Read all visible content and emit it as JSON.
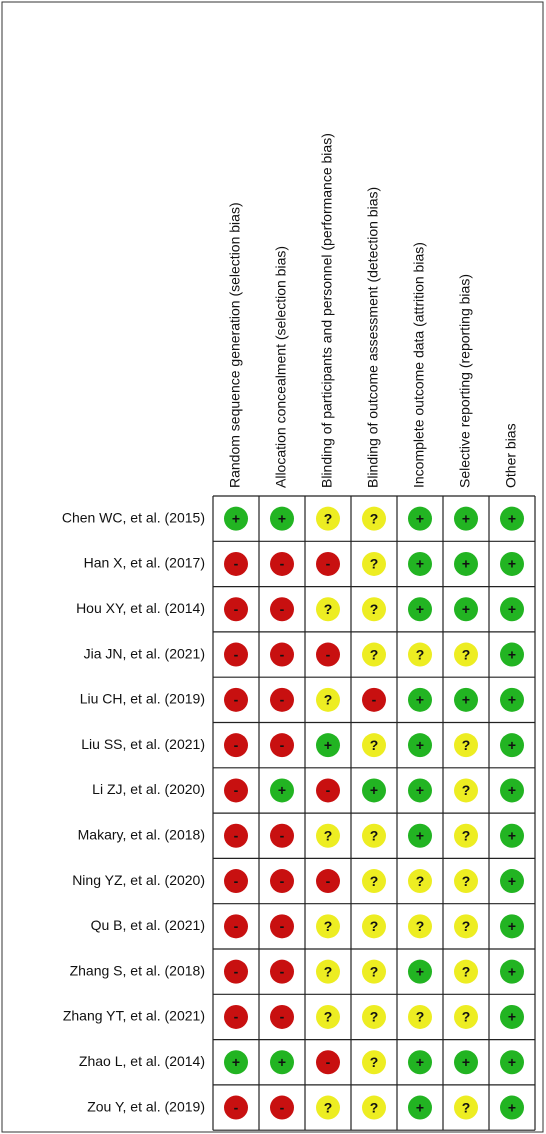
{
  "columns": [
    "Random sequence generation (selection bias)",
    "Allocation concealment (selection bias)",
    "Blinding of participants and personnel (performance bias)",
    "Blinding of outcome assessment (detection bias)",
    "Incomplete outcome data (attrition bias)",
    "Selective reporting (reporting bias)",
    "Other bias"
  ],
  "rows": [
    {
      "study": "Chen WC, et al. (2015)",
      "cells": [
        "+",
        "+",
        "?",
        "?",
        "+",
        "+",
        "+"
      ]
    },
    {
      "study": "Han X, et al. (2017)",
      "cells": [
        "-",
        "-",
        "-",
        "?",
        "+",
        "+",
        "+"
      ]
    },
    {
      "study": "Hou XY, et al. (2014)",
      "cells": [
        "-",
        "-",
        "?",
        "?",
        "+",
        "+",
        "+"
      ]
    },
    {
      "study": "Jia JN, et al. (2021)",
      "cells": [
        "-",
        "-",
        "-",
        "?",
        "?",
        "?",
        "+"
      ]
    },
    {
      "study": "Liu CH, et al. (2019)",
      "cells": [
        "-",
        "-",
        "?",
        "-",
        "+",
        "+",
        "+"
      ]
    },
    {
      "study": "Liu SS, et al. (2021)",
      "cells": [
        "-",
        "-",
        "+",
        "?",
        "+",
        "?",
        "+"
      ]
    },
    {
      "study": "Li ZJ, et al. (2020)",
      "cells": [
        "-",
        "+",
        "-",
        "+",
        "+",
        "?",
        "+"
      ]
    },
    {
      "study": "Makary, et al. (2018)",
      "cells": [
        "-",
        "-",
        "?",
        "?",
        "+",
        "?",
        "+"
      ]
    },
    {
      "study": "Ning YZ, et al. (2020)",
      "cells": [
        "-",
        "-",
        "-",
        "?",
        "?",
        "?",
        "+"
      ]
    },
    {
      "study": "Qu B, et al. (2021)",
      "cells": [
        "-",
        "-",
        "?",
        "?",
        "?",
        "?",
        "+"
      ]
    },
    {
      "study": "Zhang S, et al. (2018)",
      "cells": [
        "-",
        "-",
        "?",
        "?",
        "+",
        "?",
        "+"
      ]
    },
    {
      "study": "Zhang YT, et al. (2021)",
      "cells": [
        "-",
        "-",
        "?",
        "?",
        "?",
        "?",
        "+"
      ]
    },
    {
      "study": "Zhao L, et al. (2014)",
      "cells": [
        "+",
        "+",
        "-",
        "?",
        "+",
        "+",
        "+"
      ]
    },
    {
      "study": "Zou Y, et al. (2019)",
      "cells": [
        "-",
        "-",
        "?",
        "?",
        "+",
        "?",
        "+"
      ]
    }
  ],
  "colors": {
    "+": "#22b422",
    "?": "#eded22",
    "-": "#c81010"
  }
}
